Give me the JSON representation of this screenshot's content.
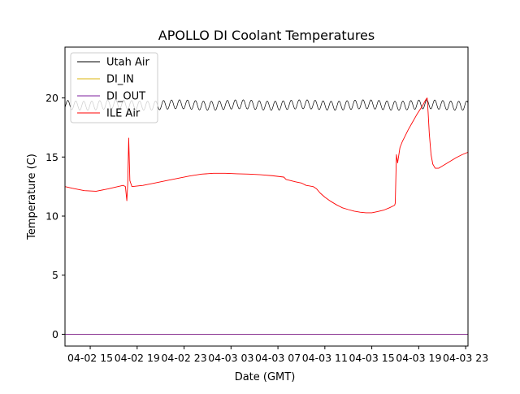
{
  "chart_data": {
    "type": "line",
    "title": "APOLLO DI Coolant Temperatures",
    "xlabel": "Date (GMT)",
    "ylabel": "Temperature (C)",
    "xlim": [
      12.85,
      47.2
    ],
    "ylim": [
      -1.0,
      24.3
    ],
    "x_unit": "hours since 2024-04-02 00:00 GMT",
    "grid": false,
    "legend_position": "top-left",
    "x_ticks": [
      {
        "value": 15,
        "label": "04-02 15"
      },
      {
        "value": 19,
        "label": "04-02 19"
      },
      {
        "value": 23,
        "label": "04-02 23"
      },
      {
        "value": 27,
        "label": "04-03 03"
      },
      {
        "value": 31,
        "label": "04-03 07"
      },
      {
        "value": 35,
        "label": "04-03 11"
      },
      {
        "value": 39,
        "label": "04-03 15"
      },
      {
        "value": 43,
        "label": "04-03 19"
      },
      {
        "value": 47,
        "label": "04-03 23"
      }
    ],
    "y_ticks": [
      {
        "value": 0,
        "label": "0"
      },
      {
        "value": 5,
        "label": "5"
      },
      {
        "value": 10,
        "label": "10"
      },
      {
        "value": 15,
        "label": "15"
      },
      {
        "value": 20,
        "label": "20"
      }
    ],
    "series": [
      {
        "name": "Utah Air",
        "color": "#000000",
        "style": "oscillation",
        "center": 19.4,
        "amplitude": 0.38,
        "period_hours": 0.68,
        "x_range": [
          12.85,
          47.2
        ]
      },
      {
        "name": "DI_IN",
        "color": "#dbb40c",
        "style": "line",
        "points": [
          [
            12.85,
            0.0
          ],
          [
            47.2,
            0.0
          ]
        ]
      },
      {
        "name": "DI_OUT",
        "color": "#7e1e9c",
        "style": "line",
        "points": [
          [
            12.85,
            0.0
          ],
          [
            47.2,
            0.0
          ]
        ]
      },
      {
        "name": "ILE Air",
        "color": "#ff0000",
        "style": "line",
        "points": [
          [
            12.85,
            12.5
          ],
          [
            13.5,
            12.35
          ],
          [
            14.5,
            12.15
          ],
          [
            15.5,
            12.1
          ],
          [
            16.5,
            12.3
          ],
          [
            17.8,
            12.6
          ],
          [
            18.0,
            12.5
          ],
          [
            18.12,
            11.3
          ],
          [
            18.2,
            12.8
          ],
          [
            18.28,
            16.6
          ],
          [
            18.38,
            13.0
          ],
          [
            18.55,
            12.5
          ],
          [
            19.5,
            12.6
          ],
          [
            20.5,
            12.8
          ],
          [
            21.5,
            13.0
          ],
          [
            22.5,
            13.2
          ],
          [
            23.5,
            13.4
          ],
          [
            24.5,
            13.55
          ],
          [
            25.5,
            13.62
          ],
          [
            26.5,
            13.62
          ],
          [
            27.5,
            13.58
          ],
          [
            28.5,
            13.55
          ],
          [
            29.5,
            13.5
          ],
          [
            30.5,
            13.42
          ],
          [
            31.5,
            13.3
          ],
          [
            31.7,
            13.1
          ],
          [
            32.5,
            12.9
          ],
          [
            33.0,
            12.8
          ],
          [
            33.4,
            12.6
          ],
          [
            34.0,
            12.5
          ],
          [
            34.3,
            12.3
          ],
          [
            34.6,
            11.95
          ],
          [
            35.0,
            11.6
          ],
          [
            35.5,
            11.25
          ],
          [
            36.0,
            10.95
          ],
          [
            36.5,
            10.7
          ],
          [
            37.0,
            10.55
          ],
          [
            37.5,
            10.42
          ],
          [
            38.0,
            10.33
          ],
          [
            38.5,
            10.28
          ],
          [
            39.0,
            10.28
          ],
          [
            39.5,
            10.38
          ],
          [
            40.0,
            10.5
          ],
          [
            40.5,
            10.7
          ],
          [
            40.95,
            10.92
          ],
          [
            41.0,
            11.1
          ],
          [
            41.05,
            13.2
          ],
          [
            41.1,
            15.2
          ],
          [
            41.2,
            14.5
          ],
          [
            41.4,
            15.8
          ],
          [
            41.6,
            16.3
          ],
          [
            41.8,
            16.7
          ],
          [
            42.1,
            17.3
          ],
          [
            42.5,
            18.0
          ],
          [
            42.9,
            18.7
          ],
          [
            43.3,
            19.3
          ],
          [
            43.6,
            19.85
          ],
          [
            43.72,
            20.0
          ],
          [
            43.8,
            18.8
          ],
          [
            43.9,
            17.0
          ],
          [
            44.05,
            15.2
          ],
          [
            44.2,
            14.4
          ],
          [
            44.4,
            14.05
          ],
          [
            44.7,
            14.05
          ],
          [
            45.2,
            14.35
          ],
          [
            45.7,
            14.65
          ],
          [
            46.2,
            14.95
          ],
          [
            46.7,
            15.2
          ],
          [
            47.2,
            15.4
          ]
        ]
      }
    ]
  }
}
